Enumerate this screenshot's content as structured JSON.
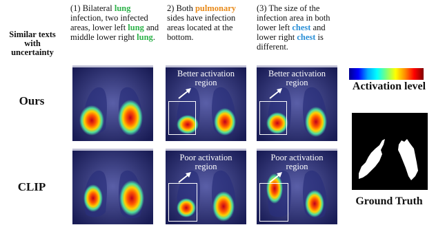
{
  "row_header_left": "Similar texts with uncertainty",
  "captions": [
    {
      "parts": [
        {
          "t": "(1) Bilateral ",
          "c": ""
        },
        {
          "t": "lung",
          "c": "g"
        },
        {
          "t": " infection, two infected areas, lower left ",
          "c": ""
        },
        {
          "t": "lung",
          "c": "g"
        },
        {
          "t": " and middle lower right ",
          "c": ""
        },
        {
          "t": "lung",
          "c": "g"
        },
        {
          "t": ".",
          "c": ""
        }
      ]
    },
    {
      "parts": [
        {
          "t": "2) Both ",
          "c": ""
        },
        {
          "t": "pulmonary",
          "c": "o"
        },
        {
          "t": " sides have infection areas located at the bottom.",
          "c": ""
        }
      ]
    },
    {
      "parts": [
        {
          "t": "(3) The size of the infection area in both lower left ",
          "c": ""
        },
        {
          "t": "chest",
          "c": "b"
        },
        {
          "t": " and lower right ",
          "c": ""
        },
        {
          "t": "chest",
          "c": "b"
        },
        {
          "t": " is different.",
          "c": ""
        }
      ]
    }
  ],
  "rows": {
    "ours": "Ours",
    "clip": "CLIP"
  },
  "annotations": {
    "better": "Better activation region",
    "poor": "Poor activation region"
  },
  "legend": {
    "activation_level": "Activation level",
    "ground_truth": "Ground Truth"
  },
  "colors": {
    "lung_word": "#2eb34a",
    "pulmonary_word": "#e88a1a",
    "chest_word": "#2a8fd6"
  }
}
